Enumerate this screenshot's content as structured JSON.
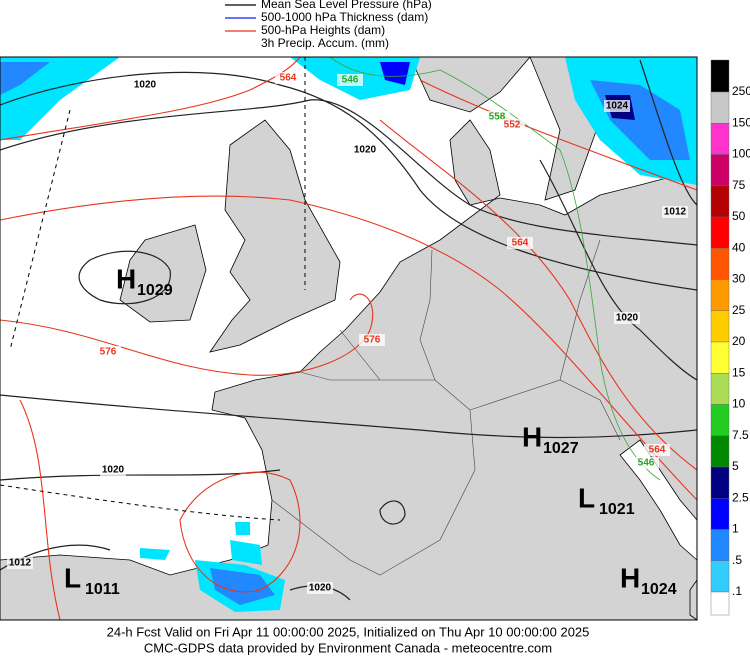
{
  "legend": [
    {
      "label": "Mean Sea Level Pressure (hPa)",
      "color": "#000000"
    },
    {
      "label": "500-1000 hPa Thickness (dam)",
      "color": "#1a1aff"
    },
    {
      "label": "500-hPa Heights (dam)",
      "color": "#e8351e"
    },
    {
      "label": "3h Precip. Accum. (mm)"
    }
  ],
  "colorbar": {
    "labels": [
      "250",
      "150",
      "100",
      "75",
      "50",
      "40",
      "30",
      "25",
      "20",
      "15",
      "10",
      "7.5",
      "5",
      "2.5",
      "1",
      ".5",
      ".1"
    ],
    "colors": [
      "#000000",
      "#c8c8c8",
      "#ff33cc",
      "#cc0066",
      "#b30000",
      "#ff0000",
      "#ff5500",
      "#ff9900",
      "#ffcc00",
      "#ffff33",
      "#aadd55",
      "#22cc22",
      "#008800",
      "#000080",
      "#0000ff",
      "#2288ff",
      "#33ccff",
      "#ffffff"
    ]
  },
  "pressure_centers": [
    {
      "letter": "H",
      "value": "1029"
    },
    {
      "letter": "H",
      "value": "1027"
    },
    {
      "letter": "L",
      "value": "1021"
    },
    {
      "letter": "H",
      "value": "1024"
    },
    {
      "letter": "L",
      "value": "1011"
    }
  ],
  "contour_labels": [
    "1020",
    "564",
    "546",
    "1020",
    "558",
    "552",
    "1024",
    "564",
    "1012",
    "1020",
    "576",
    "576",
    "1020",
    "1012",
    "1020",
    "564",
    "546"
  ],
  "footer": [
    "24-h Fcst Valid on Fri Apr 11 00:00:00 2025, Initialized on Thu Apr 10 00:00:00 2025",
    "CMC-GDPS data provided by Environment Canada - meteocentre.com"
  ]
}
